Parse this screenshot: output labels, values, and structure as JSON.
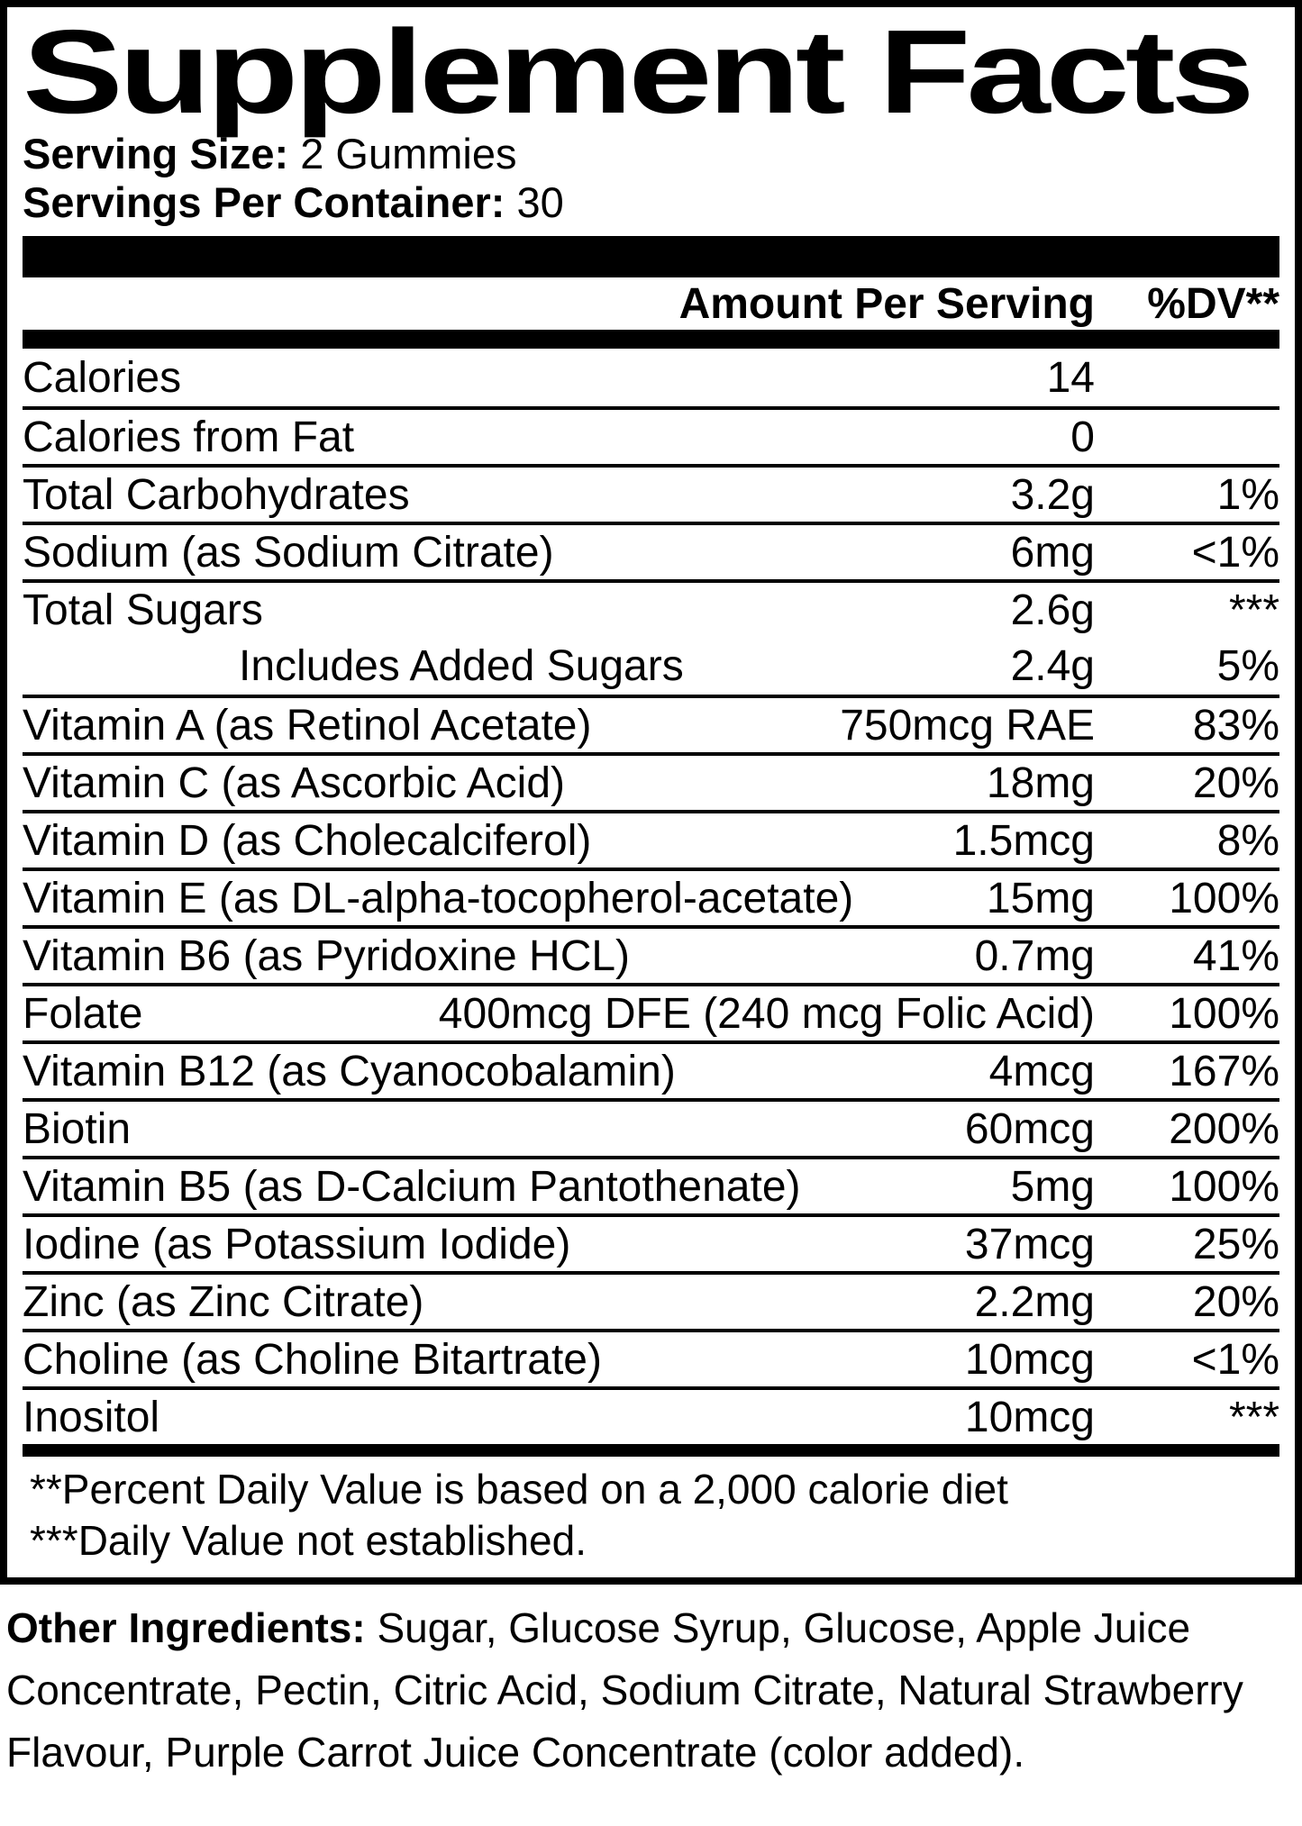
{
  "label": {
    "title": "Supplement Facts",
    "serving_size_label": "Serving Size:",
    "serving_size_value": "2 Gummies",
    "servings_per_container_label": "Servings Per Container:",
    "servings_per_container_value": "30"
  },
  "table": {
    "amount_header": "Amount Per Serving",
    "dv_header": "%DV**",
    "rows": [
      {
        "name": "Calories",
        "amount": "14",
        "dv": ""
      },
      {
        "name": "Calories from Fat",
        "amount": "0",
        "dv": ""
      },
      {
        "name": "Total Carbohydrates",
        "amount": "3.2g",
        "dv": "1%"
      },
      {
        "name": "Sodium (as Sodium Citrate)",
        "amount": "6mg",
        "dv": "<1%"
      },
      {
        "name": "Total Sugars",
        "amount": "2.6g",
        "dv": "***"
      },
      {
        "name": "Includes Added Sugars",
        "amount": "2.4g",
        "dv": "5%"
      },
      {
        "name": "Vitamin A (as Retinol Acetate)",
        "amount": "750mcg RAE",
        "dv": "83%"
      },
      {
        "name": "Vitamin C (as Ascorbic Acid)",
        "amount": "18mg",
        "dv": "20%"
      },
      {
        "name": "Vitamin D (as Cholecalciferol)",
        "amount": "1.5mcg",
        "dv": "8%"
      },
      {
        "name": "Vitamin E (as DL-alpha-tocopherol-acetate)",
        "amount": "15mg",
        "dv": "100%"
      },
      {
        "name": "Vitamin B6 (as Pyridoxine HCL)",
        "amount": "0.7mg",
        "dv": "41%"
      },
      {
        "name": "Folate",
        "amount": "400mcg DFE (240 mcg Folic Acid)",
        "dv": "100%"
      },
      {
        "name": "Vitamin B12 (as Cyanocobalamin)",
        "amount": "4mcg",
        "dv": "167%"
      },
      {
        "name": "Biotin",
        "amount": "60mcg",
        "dv": "200%"
      },
      {
        "name": "Vitamin B5 (as D-Calcium Pantothenate)",
        "amount": "5mg",
        "dv": "100%"
      },
      {
        "name": "Iodine (as Potassium Iodide)",
        "amount": "37mcg",
        "dv": "25%"
      },
      {
        "name": "Zinc (as Zinc Citrate)",
        "amount": "2.2mg",
        "dv": "20%"
      },
      {
        "name": "Choline (as Choline Bitartrate)",
        "amount": "10mcg",
        "dv": "<1%"
      },
      {
        "name": "Inositol",
        "amount": "10mcg",
        "dv": "***"
      }
    ]
  },
  "footnotes": {
    "daily_value": "**Percent Daily Value is based on a 2,000 calorie diet",
    "not_established": "***Daily Value not established."
  },
  "other_ingredients": {
    "label": "Other Ingredients:",
    "text": " Sugar, Glucose Syrup, Glucose, Apple Juice Concentrate, Pectin, Citric Acid, Sodium Citrate, Natural Strawberry Flavour, Purple Carrot Juice Concentrate (color added)."
  },
  "colors": {
    "ink": "#000000",
    "paper": "#ffffff"
  }
}
